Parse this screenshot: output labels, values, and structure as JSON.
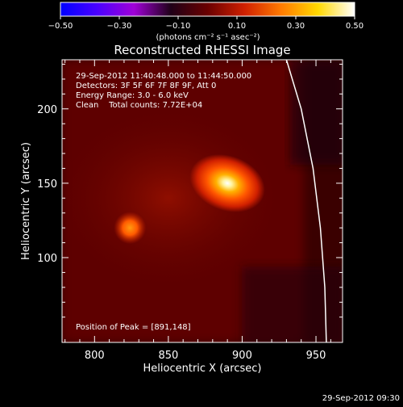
{
  "colorbar": {
    "ticks": [
      "−0.50",
      "−0.30",
      "−0.10",
      "0.10",
      "0.30",
      "0.50"
    ],
    "unit_label": "(photons cm⁻² s⁻¹ asec⁻²)",
    "range": [
      -0.5,
      0.5
    ],
    "colors": [
      "#0000ff",
      "#4a00ff",
      "#a000d8",
      "#200018",
      "#6a0000",
      "#d02000",
      "#ff7a00",
      "#ffd800",
      "#ffffff"
    ]
  },
  "chart_data": {
    "type": "heatmap",
    "title": "Reconstructed RHESSI Image",
    "xlabel": "Heliocentric X (arcsec)",
    "ylabel": "Heliocentric Y (arcsec)",
    "xlim": [
      778,
      968
    ],
    "ylim": [
      43,
      233
    ],
    "x_ticks": [
      800,
      850,
      900,
      950
    ],
    "y_ticks": [
      100,
      150,
      200
    ],
    "sources": [
      {
        "x": 890,
        "y": 150,
        "peak": 0.5
      },
      {
        "x": 824,
        "y": 120,
        "peak": 0.3
      }
    ],
    "limb": [
      [
        930,
        233
      ],
      [
        940,
        200
      ],
      [
        948,
        160
      ],
      [
        953,
        120
      ],
      [
        956,
        80
      ],
      [
        957,
        43
      ]
    ],
    "annotations": {
      "time": "29-Sep-2012 11:40:48.000 to 11:44:50.000",
      "detectors": "Detectors: 3F 5F 6F 7F 8F 9F, Att 0",
      "energy": "Energy Range: 3.0 - 6.0 keV",
      "clean": "Clean    Total counts: 7.72E+04",
      "peak_position": "Position of Peak = [891,148]"
    }
  },
  "footer": {
    "timestamp": "29-Sep-2012 09:30"
  }
}
